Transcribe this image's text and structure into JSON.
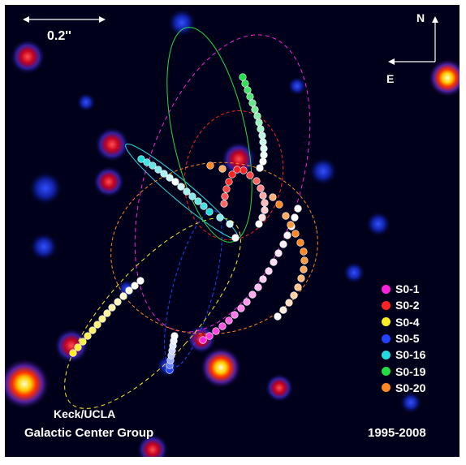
{
  "scale_bar": {
    "label": "0.2''"
  },
  "compass": {
    "north": "N",
    "east": "E"
  },
  "credit": {
    "line1": "Keck/UCLA",
    "line2": "Galactic Center Group"
  },
  "time_range": "1995-2008",
  "legend": [
    {
      "name": "S0-1",
      "color": "#ff22dd"
    },
    {
      "name": "S0-2",
      "color": "#ff2222"
    },
    {
      "name": "S0-4",
      "color": "#ffee22"
    },
    {
      "name": "S0-5",
      "color": "#2244ff"
    },
    {
      "name": "S0-16",
      "color": "#22dddd"
    },
    {
      "name": "S0-19",
      "color": "#22dd44"
    },
    {
      "name": "S0-20",
      "color": "#ff8822"
    }
  ]
}
